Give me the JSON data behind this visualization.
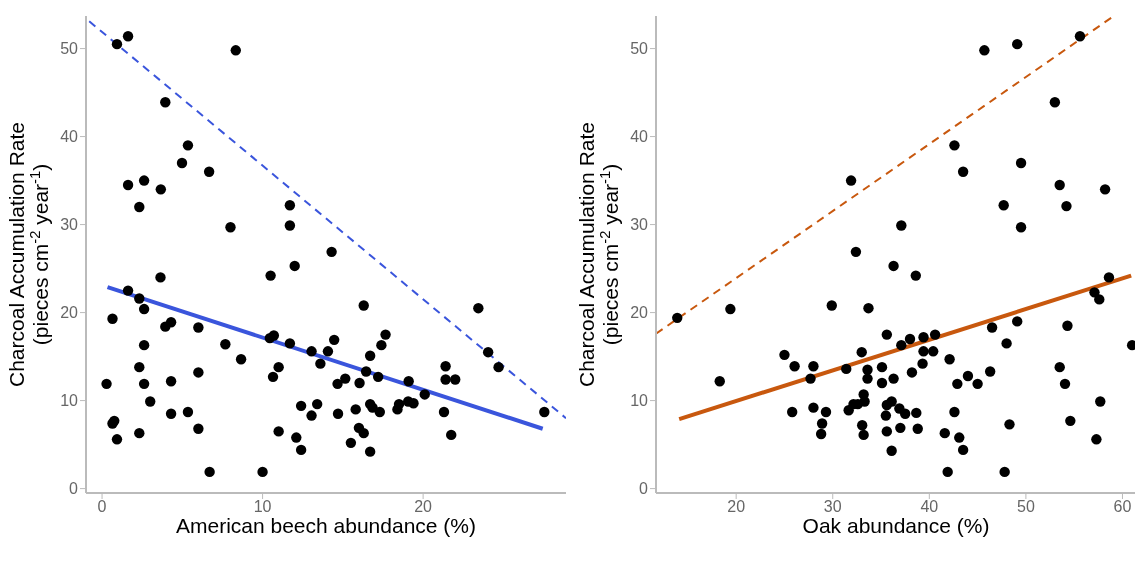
{
  "chart_data": [
    {
      "type": "scatter",
      "xlabel": "American beech abundance (%)",
      "ylabel": "Charcoal Accumulation Rate\n(pieces cm$^{-2}$ year$^{-1}$)",
      "xlim": [
        -1,
        28.9
      ],
      "xticks": [
        0,
        10,
        20
      ],
      "ylim": [
        -0.5,
        53.7
      ],
      "yticks": [
        0,
        10,
        20,
        30,
        40,
        50
      ],
      "series": [
        {
          "color": "#000000",
          "marker": "circle",
          "x": [
            0.93,
            1.62,
            8.33,
            3.94,
            5.35,
            4.98,
            6.67,
            1.62,
            2.62,
            3.66,
            2.32,
            8.0,
            11.7,
            11.7,
            12.0,
            10.5,
            3.64,
            1.62,
            2.32,
            2.62,
            0.65,
            3.94,
            4.3,
            6.0,
            2.62,
            7.68,
            8.66,
            2.32,
            6.0,
            0.28,
            2.62,
            4.3,
            3.0,
            0.65,
            0.76,
            0.93,
            2.32,
            4.3,
            5.35,
            6.0,
            6.7,
            10.0,
            10.45,
            10.7,
            11.7,
            10.65,
            11.0,
            11.0,
            12.1,
            12.4,
            12.4,
            13.05,
            13.4,
            13.05,
            13.6,
            14.07,
            14.3,
            16.3,
            23.44,
            24.05,
            24.7,
            27.55,
            17.66,
            17.4,
            16.7,
            14.46,
            14.67,
            15.15,
            16.04,
            16.45,
            17.2,
            19.1,
            20.1,
            21.4,
            21.4,
            22.0,
            21.3,
            21.75,
            14.7,
            15.8,
            16.7,
            16.85,
            17.3,
            18.4,
            18.5,
            19.07,
            19.4,
            16.0,
            16.3,
            15.5,
            16.7
          ],
          "values": [
            50.5,
            51.4,
            49.8,
            43.9,
            39.0,
            37.0,
            36.0,
            34.5,
            35.0,
            34.0,
            32.0,
            29.7,
            32.2,
            29.9,
            25.3,
            24.2,
            24.0,
            22.5,
            21.6,
            20.4,
            19.3,
            18.4,
            18.9,
            18.3,
            16.3,
            16.4,
            14.7,
            13.8,
            13.2,
            11.9,
            11.9,
            12.2,
            9.9,
            7.4,
            7.7,
            5.6,
            6.3,
            8.5,
            8.7,
            6.8,
            1.9,
            1.9,
            17.1,
            17.4,
            16.5,
            12.7,
            13.8,
            6.5,
            5.8,
            4.4,
            9.4,
            8.3,
            9.6,
            15.6,
            14.2,
            15.6,
            26.9,
            20.8,
            20.5,
            15.5,
            13.8,
            8.7,
            17.5,
            16.3,
            15.1,
            16.9,
            11.9,
            12.5,
            12.0,
            13.3,
            12.7,
            12.2,
            10.7,
            13.9,
            12.4,
            12.4,
            8.7,
            6.1,
            8.5,
            9.0,
            9.6,
            9.2,
            8.7,
            9.0,
            9.6,
            9.9,
            9.7,
            6.9,
            6.3,
            5.2,
            4.2
          ]
        },
        {
          "type": "line",
          "color": "#3a55dc",
          "line_style": "solid",
          "x": [
            0.34,
            27.45
          ],
          "values": [
            22.9,
            6.8
          ]
        },
        {
          "type": "line",
          "color": "#3a55dc",
          "line_style": "dashed",
          "x": [
            -0.8,
            28.9
          ],
          "values": [
            53.1,
            8.0
          ]
        }
      ]
    },
    {
      "type": "scatter",
      "xlabel": "Oak abundance (%)",
      "ylabel": "Charcoal Accumulation Rate\n(pieces cm$^{-2}$ year$^{-1}$)",
      "xlim": [
        11.7,
        61.4
      ],
      "xticks": [
        20,
        30,
        40,
        50,
        60
      ],
      "ylim": [
        -0.5,
        53.7
      ],
      "yticks": [
        0,
        10,
        20,
        30,
        40,
        50
      ],
      "series": [
        {
          "color": "#000000",
          "marker": "circle",
          "x": [
            13.9,
            19.4,
            18.3,
            29.9,
            33.7,
            31.9,
            32.4,
            25.0,
            26.05,
            28.0,
            27.7,
            25.8,
            28.0,
            29.3,
            28.9,
            28.8,
            31.4,
            33.0,
            33.6,
            31.65,
            32.15,
            33.2,
            33.3,
            32.6,
            33.05,
            45.7,
            49.1,
            55.6,
            53.0,
            42.6,
            49.5,
            43.5,
            53.5,
            58.2,
            47.7,
            54.2,
            49.5,
            37.1,
            36.3,
            38.6,
            58.6,
            57.1,
            57.6,
            49.1,
            46.5,
            54.3,
            61.0,
            48.0,
            35.6,
            38.0,
            37.1,
            39.4,
            40.6,
            39.4,
            40.4,
            35.1,
            39.3,
            42.1,
            38.2,
            33.6,
            35.1,
            36.3,
            42.9,
            44.0,
            45.0,
            46.3,
            53.5,
            54.05,
            35.6,
            36.1,
            35.5,
            36.9,
            37.5,
            38.65,
            42.6,
            57.7,
            33.2,
            35.6,
            37.0,
            38.8,
            41.6,
            43.1,
            43.5,
            36.1,
            48.3,
            54.6,
            57.3,
            41.9,
            47.8
          ],
          "values": [
            19.4,
            20.4,
            12.2,
            20.8,
            20.5,
            35.0,
            26.9,
            15.2,
            13.9,
            13.9,
            12.5,
            8.7,
            9.2,
            8.7,
            7.4,
            6.2,
            13.6,
            15.5,
            13.5,
            8.9,
            9.6,
            10.7,
            9.9,
            9.6,
            7.2,
            49.8,
            50.5,
            51.4,
            43.9,
            39.0,
            37.0,
            36.0,
            34.5,
            34.0,
            32.2,
            32.1,
            29.7,
            29.9,
            25.3,
            24.2,
            24.0,
            22.3,
            21.5,
            19.0,
            18.3,
            18.5,
            16.3,
            16.5,
            17.5,
            17.0,
            16.3,
            17.2,
            17.5,
            15.6,
            15.6,
            13.8,
            14.2,
            14.7,
            13.2,
            12.5,
            12.0,
            12.5,
            11.9,
            12.8,
            11.9,
            13.3,
            13.8,
            11.9,
            9.5,
            9.9,
            8.3,
            9.1,
            8.5,
            8.6,
            8.7,
            9.9,
            6.1,
            6.5,
            6.9,
            6.8,
            6.3,
            5.8,
            4.4,
            4.3,
            7.3,
            7.7,
            5.6,
            1.9,
            1.9
          ]
        },
        {
          "type": "line",
          "color": "#c8580e",
          "line_style": "solid",
          "x": [
            14.1,
            60.9
          ],
          "values": [
            7.9,
            24.2
          ]
        },
        {
          "type": "line",
          "color": "#c8580e",
          "line_style": "dashed",
          "x": [
            11.7,
            59.1
          ],
          "values": [
            17.6,
            53.7
          ]
        }
      ]
    }
  ]
}
